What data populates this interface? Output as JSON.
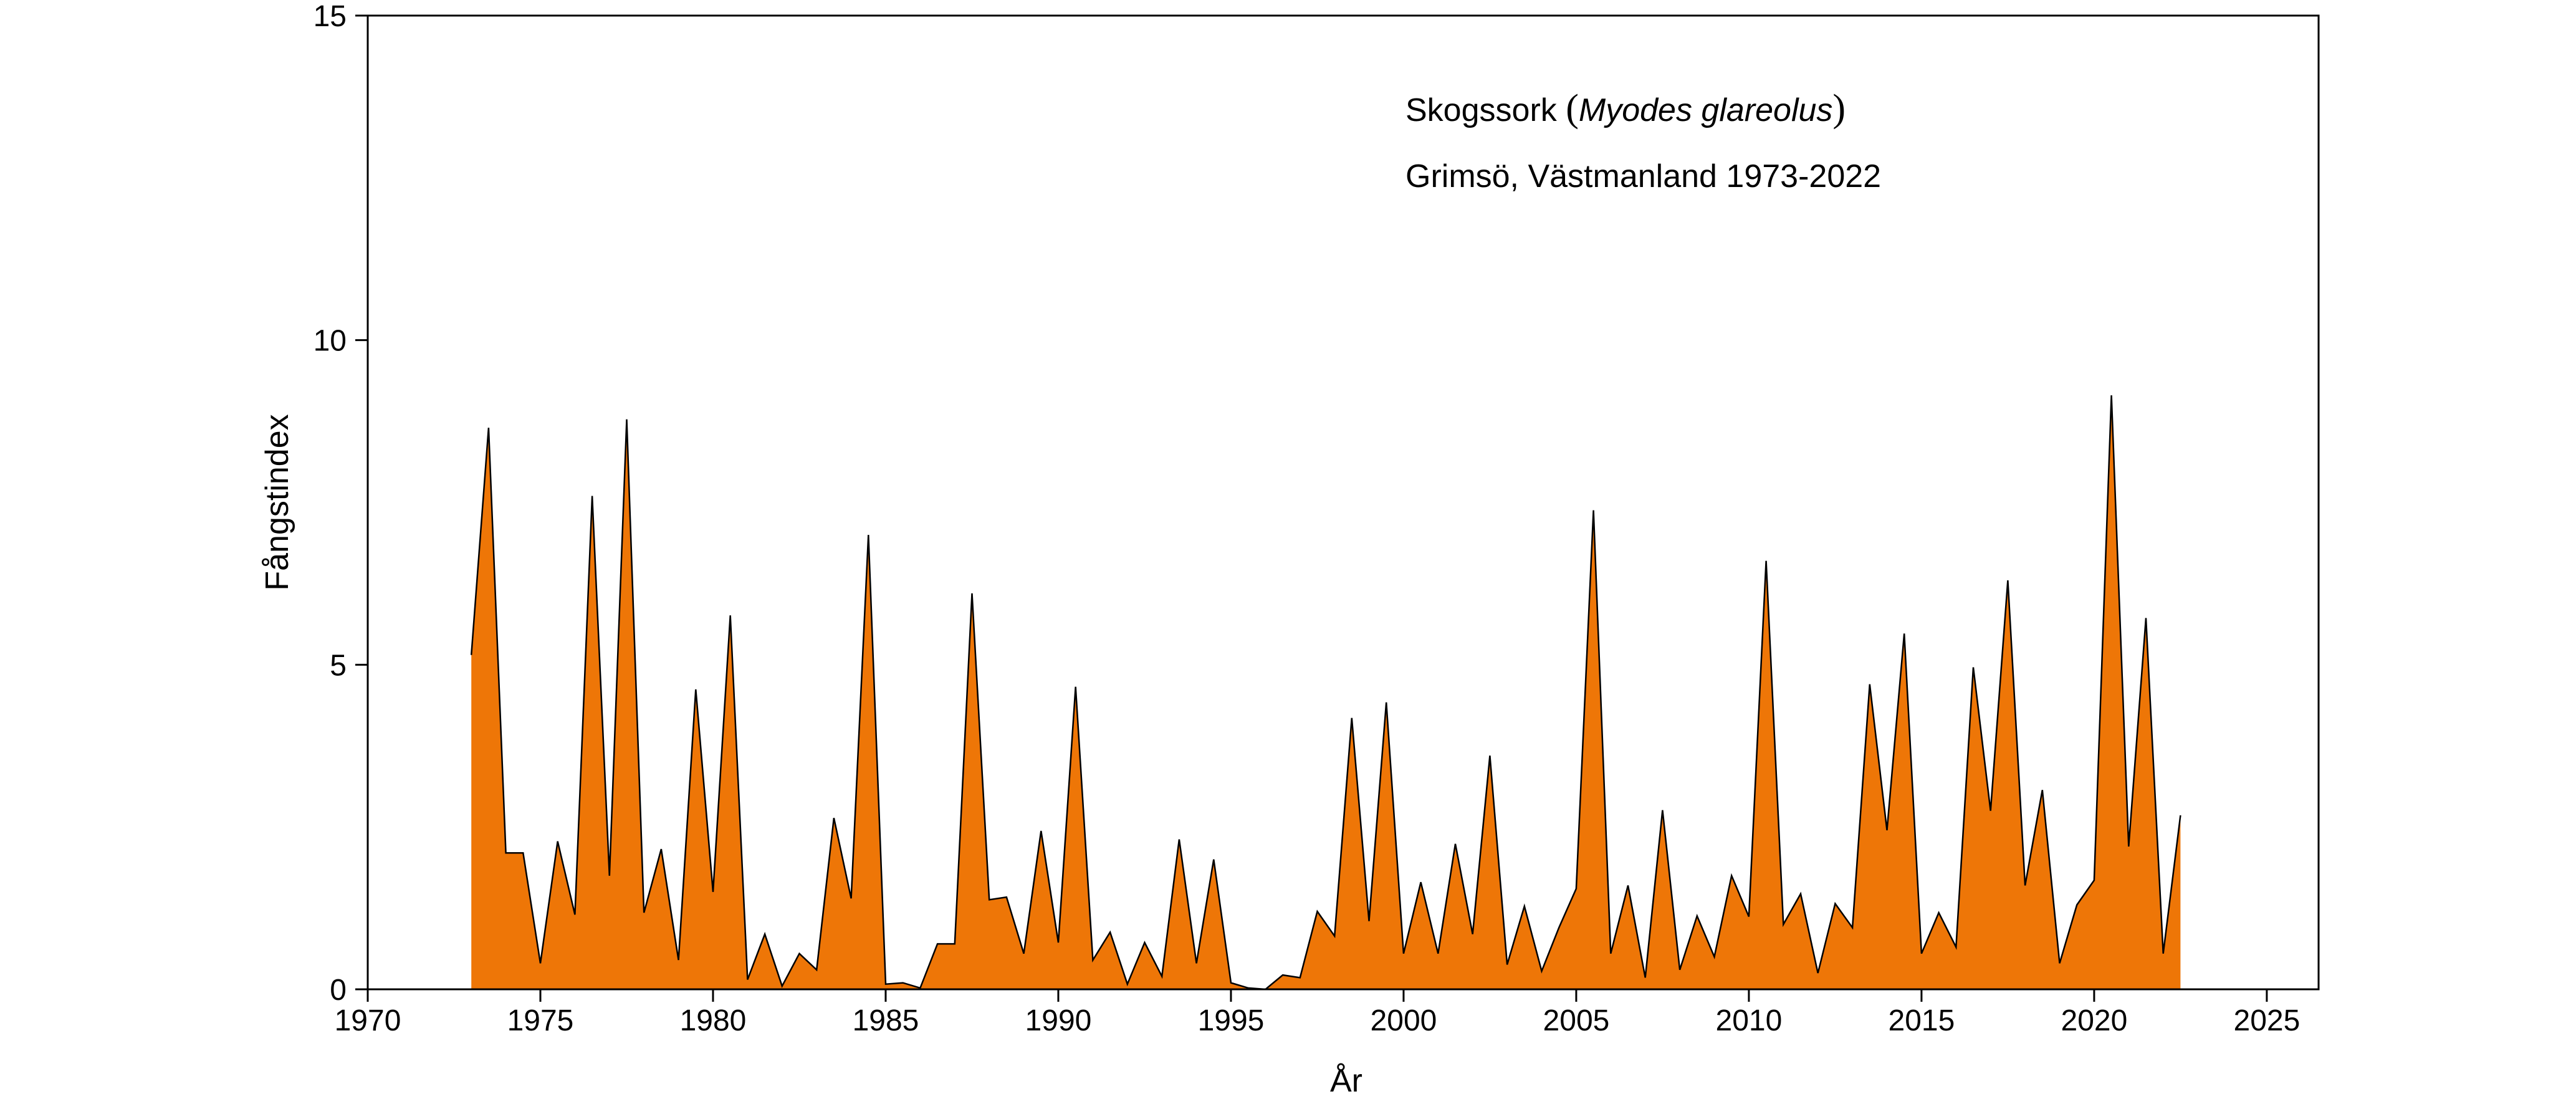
{
  "chart_data": {
    "type": "area",
    "annotation": {
      "species_prefix": "Skogssork ",
      "paren_open": "(",
      "species_latin": "Myodes glareolus",
      "paren_close": ")",
      "location": "Grimsö, Västmanland 1973-2022"
    },
    "xlabel": "År",
    "ylabel": "Fångstindex",
    "xlim": [
      1970,
      2026.5
    ],
    "ylim": [
      0,
      15
    ],
    "xticks": [
      1970,
      1975,
      1980,
      1985,
      1990,
      1995,
      2000,
      2005,
      2010,
      2015,
      2020,
      2025
    ],
    "yticks": [
      0,
      5,
      10,
      15
    ],
    "fill_color": "#EE7607",
    "line_color": "#000000",
    "grid": false,
    "legend": "none",
    "x": [
      1973.0,
      1973.5,
      1974.0,
      1974.5,
      1975.0,
      1975.5,
      1976.0,
      1976.5,
      1977.0,
      1977.5,
      1978.0,
      1978.5,
      1979.0,
      1979.5,
      1980.0,
      1980.5,
      1981.0,
      1981.5,
      1982.0,
      1982.5,
      1983.0,
      1983.5,
      1984.0,
      1984.5,
      1985.0,
      1985.5,
      1986.0,
      1986.5,
      1987.0,
      1987.5,
      1988.0,
      1988.5,
      1989.0,
      1989.5,
      1990.0,
      1990.5,
      1991.0,
      1991.5,
      1992.0,
      1992.5,
      1993.0,
      1993.5,
      1994.0,
      1994.5,
      1995.0,
      1995.5,
      1996.0,
      1996.5,
      1997.0,
      1997.5,
      1998.0,
      1998.5,
      1999.0,
      1999.5,
      2000.0,
      2000.5,
      2001.0,
      2001.5,
      2002.0,
      2002.5,
      2003.0,
      2003.5,
      2004.0,
      2004.5,
      2005.0,
      2005.5,
      2006.0,
      2006.5,
      2007.0,
      2007.5,
      2008.0,
      2008.5,
      2009.0,
      2009.5,
      2010.0,
      2010.5,
      2011.0,
      2011.5,
      2012.0,
      2012.5,
      2013.0,
      2013.5,
      2014.0,
      2014.5,
      2015.0,
      2015.5,
      2016.0,
      2016.5,
      2017.0,
      2017.5,
      2018.0,
      2018.5,
      2019.0,
      2019.5,
      2020.0,
      2020.5,
      2021.0,
      2021.5,
      2022.0,
      2022.5
    ],
    "y": [
      5.15,
      8.65,
      2.1,
      2.1,
      0.4,
      2.28,
      1.15,
      7.6,
      1.75,
      8.78,
      1.18,
      2.16,
      0.45,
      4.62,
      1.5,
      5.76,
      0.15,
      0.85,
      0.05,
      0.55,
      0.3,
      2.64,
      1.4,
      7.0,
      0.08,
      0.1,
      0.02,
      0.7,
      0.7,
      6.1,
      1.38,
      1.42,
      0.55,
      2.44,
      0.72,
      4.66,
      0.45,
      0.88,
      0.08,
      0.72,
      0.2,
      2.31,
      0.4,
      2.0,
      0.1,
      0.02,
      0.0,
      0.22,
      0.18,
      1.2,
      0.82,
      4.18,
      1.05,
      4.42,
      0.55,
      1.65,
      0.55,
      2.24,
      0.85,
      3.6,
      0.38,
      1.28,
      0.28,
      0.95,
      1.55,
      7.38,
      0.55,
      1.6,
      0.18,
      2.76,
      0.3,
      1.13,
      0.5,
      1.75,
      1.12,
      6.6,
      1.0,
      1.47,
      0.25,
      1.32,
      0.95,
      4.7,
      2.45,
      5.48,
      0.55,
      1.18,
      0.65,
      4.96,
      2.75,
      6.3,
      1.6,
      3.07,
      0.4,
      1.3,
      1.68,
      9.15,
      2.2,
      5.72,
      0.55,
      2.68
    ]
  }
}
